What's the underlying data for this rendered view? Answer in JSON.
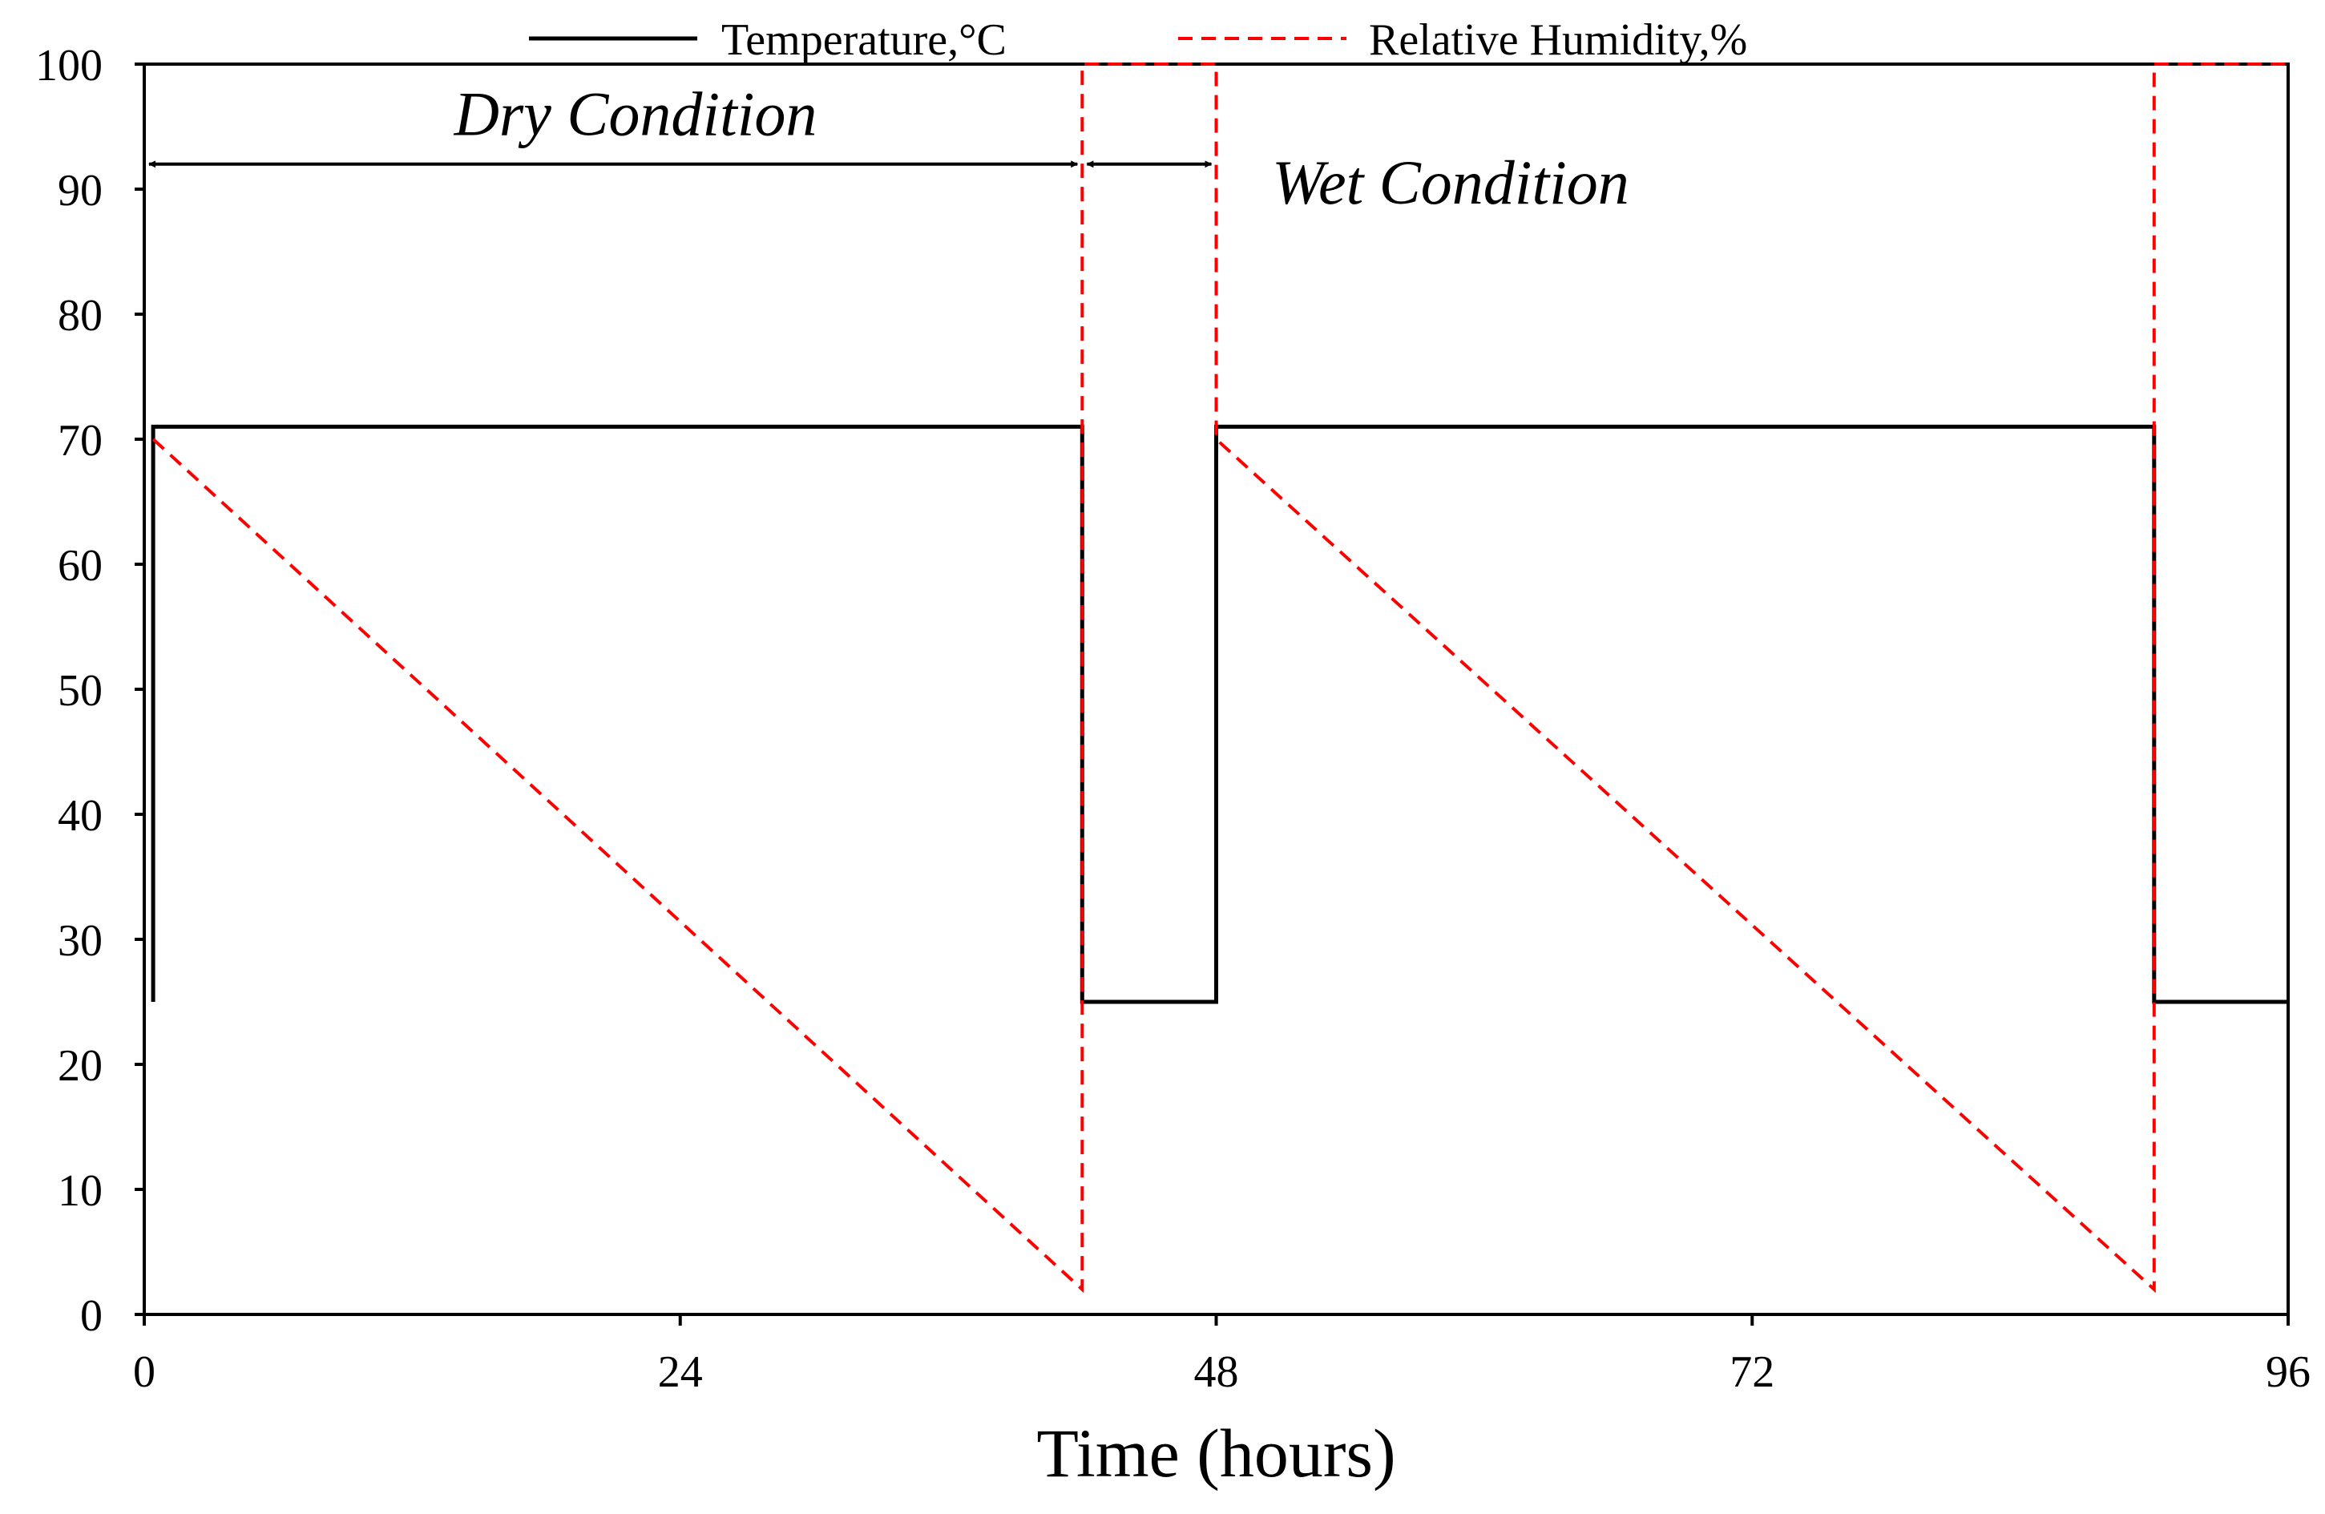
{
  "chart_data": {
    "type": "line",
    "title": "",
    "xlabel": "Time (hours)",
    "ylabel": "",
    "xlim": [
      0,
      96
    ],
    "ylim": [
      0,
      100
    ],
    "x_ticks": [
      0,
      24,
      48,
      72,
      96
    ],
    "y_ticks": [
      0,
      10,
      20,
      30,
      40,
      50,
      60,
      70,
      80,
      90,
      100
    ],
    "x_tick_labels": [
      "0",
      "24",
      "48",
      "72",
      "96"
    ],
    "y_tick_labels": [
      "0",
      "10",
      "20",
      "30",
      "40",
      "50",
      "60",
      "70",
      "80",
      "90",
      "100"
    ],
    "legend_position": "top",
    "series": [
      {
        "name": "Temperature,°C",
        "style": "solid",
        "color": "#000000",
        "points": [
          [
            0.4,
            25
          ],
          [
            0.4,
            71
          ],
          [
            42,
            71
          ],
          [
            42,
            25
          ],
          [
            48,
            25
          ],
          [
            48,
            71
          ],
          [
            90,
            71
          ],
          [
            90,
            25
          ],
          [
            96,
            25
          ]
        ]
      },
      {
        "name": "Relative Humidity,%",
        "style": "dashed",
        "color": "#ff0000",
        "points": [
          [
            0.4,
            70
          ],
          [
            42,
            2
          ],
          [
            42,
            100
          ],
          [
            48,
            100
          ],
          [
            48,
            70
          ],
          [
            90,
            2
          ],
          [
            90,
            100
          ],
          [
            96,
            100
          ]
        ]
      }
    ],
    "annotations": [
      {
        "text": "Dry Condition",
        "x_start": 0,
        "x_end": 42,
        "arrow_y": 92,
        "text_x": 22,
        "text_y": 96
      },
      {
        "text": "Wet Condition",
        "x_start": 42,
        "x_end": 48,
        "arrow_y": 92,
        "text_x": 50.5,
        "text_y": 90.5
      }
    ]
  }
}
